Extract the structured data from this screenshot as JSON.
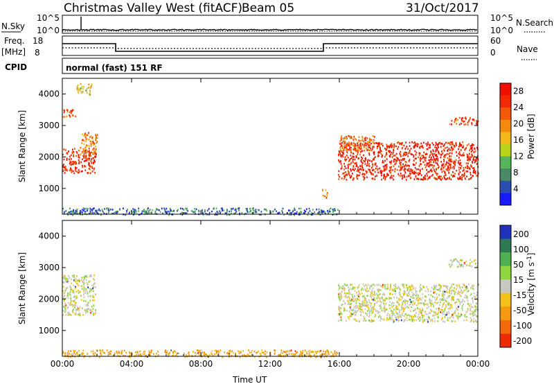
{
  "header": {
    "station": "Christmas Valley West (fitACF)",
    "beam": "Beam 05",
    "date": "31/Oct/2017"
  },
  "noise_panel": {
    "left_label": "N.Sky",
    "right_label": "N.Search",
    "left_ticks": [
      "10^5",
      "10^0"
    ],
    "right_ticks": [
      "10^5",
      "10^0"
    ]
  },
  "freq_panel": {
    "left_label_1": "Freq.",
    "left_label_2": "[MHz]",
    "left_ticks": [
      "18",
      "8"
    ],
    "right_label": "Nave",
    "right_ticks": [
      "60",
      "0"
    ]
  },
  "cpid_panel": {
    "label": "CPID",
    "text": "normal (fast) 151 RF"
  },
  "chart_data": [
    {
      "type": "heatmap",
      "title": "Power",
      "ylabel": "Slant Range [km]",
      "ylim": [
        180,
        4500
      ],
      "y_ticks": [
        "1000",
        "2000",
        "3000",
        "4000"
      ],
      "xlim": [
        "00:00",
        "24:00"
      ],
      "x_ticks": [
        "00:00",
        "04:00",
        "08:00",
        "12:00",
        "16:00",
        "20:00",
        "00:00"
      ],
      "colorbar": {
        "label": "Power [dB]",
        "ticks": [
          "28",
          "24",
          "20",
          "16",
          "12",
          "8",
          "4"
        ],
        "range": [
          0,
          30
        ],
        "colors": [
          "#1a1aff",
          "#2a4fb0",
          "#4a8a66",
          "#55b55a",
          "#bbd21a",
          "#f2b81a",
          "#f58a10",
          "#f25a0a",
          "#f02a05",
          "#ee1100"
        ]
      },
      "regions": [
        {
          "t0": 0.0,
          "t1": 1.9,
          "r0": 1500,
          "r1": 2300,
          "value": 26
        },
        {
          "t0": 1.0,
          "t1": 2.0,
          "r0": 2100,
          "r1": 2800,
          "value": 20
        },
        {
          "t0": 0.0,
          "t1": 0.8,
          "r0": 3300,
          "r1": 3550,
          "value": 25
        },
        {
          "t0": 0.8,
          "t1": 1.7,
          "r0": 4000,
          "r1": 4350,
          "value": 16
        },
        {
          "t0": 15.9,
          "t1": 24.0,
          "r0": 1300,
          "r1": 2500,
          "value": 27
        },
        {
          "t0": 16.0,
          "t1": 18.0,
          "r0": 2200,
          "r1": 2700,
          "value": 22
        },
        {
          "t0": 22.3,
          "t1": 24.0,
          "r0": 3050,
          "r1": 3300,
          "value": 24
        },
        {
          "t0": 15.0,
          "t1": 15.3,
          "r0": 700,
          "r1": 1000,
          "value": 20
        },
        {
          "t0": 0.0,
          "t1": 15.9,
          "r0": 180,
          "r1": 400,
          "value": 6
        }
      ]
    },
    {
      "type": "heatmap",
      "title": "Velocity",
      "ylabel": "Slant Range [km]",
      "ylim": [
        180,
        4500
      ],
      "y_ticks": [
        "1000",
        "2000",
        "3000",
        "4000"
      ],
      "xlim": [
        "00:00",
        "24:00"
      ],
      "x_ticks": [
        "00:00",
        "04:00",
        "08:00",
        "12:00",
        "16:00",
        "20:00",
        "00:00"
      ],
      "xlabel": "Time UT",
      "colorbar": {
        "label": "Velocity [m s-1]",
        "ticks": [
          "200",
          "100",
          "50",
          "15",
          "-15",
          "-50",
          "-100",
          "-200"
        ],
        "colors": [
          "#2233bb",
          "#2f7a55",
          "#4fb052",
          "#8fd640",
          "#c8c8c0",
          "#f2c21a",
          "#f59a10",
          "#f26a0a",
          "#ee2a05"
        ]
      },
      "regions": [
        {
          "t0": 0.0,
          "t1": 1.9,
          "r0": 1500,
          "r1": 2800,
          "value": 0
        },
        {
          "t0": 15.9,
          "t1": 24.0,
          "r0": 1300,
          "r1": 2500,
          "value": 0
        },
        {
          "t0": 22.3,
          "t1": 24.0,
          "r0": 3050,
          "r1": 3300,
          "value": 0
        },
        {
          "t0": 0.0,
          "t1": 15.9,
          "r0": 180,
          "r1": 400,
          "value": -40
        }
      ]
    }
  ]
}
